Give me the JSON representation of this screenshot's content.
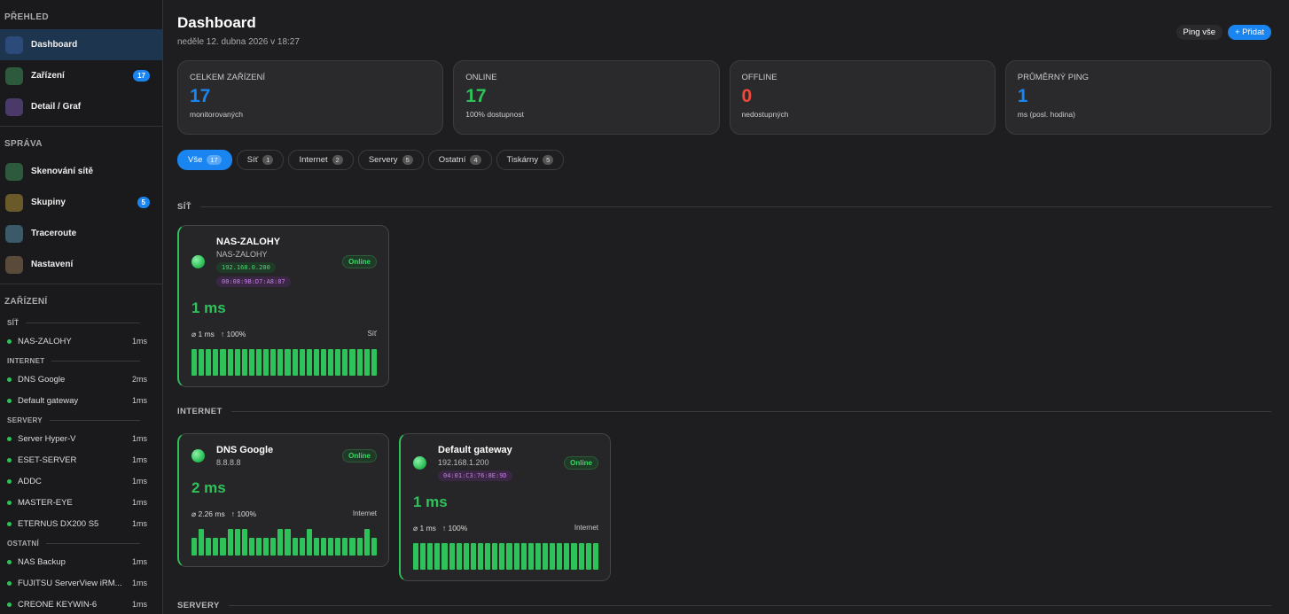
{
  "sidebar": {
    "sections": [
      {
        "title": "PŘEHLED",
        "items": [
          {
            "label": "Dashboard"
          },
          {
            "label": "Zařízení",
            "badge": 17
          },
          {
            "label": "Detail / Graf"
          }
        ]
      },
      {
        "title": "SPRÁVA",
        "items": [
          {
            "label": "Skenování sítě"
          },
          {
            "label": "Skupiny",
            "badge": 5
          },
          {
            "label": "Traceroute"
          },
          {
            "label": "Nastavení"
          }
        ]
      }
    ],
    "devices_title": "ZAŘÍZENÍ",
    "device_groups": [
      {
        "title": "SÍŤ",
        "items": [
          {
            "name": "NAS-ZALOHY",
            "ping": "1ms"
          }
        ]
      },
      {
        "title": "INTERNET",
        "items": [
          {
            "name": "DNS Google",
            "ping": "2ms"
          },
          {
            "name": "Default gateway",
            "ping": "1ms"
          }
        ]
      },
      {
        "title": "SERVERY",
        "items": [
          {
            "name": "Server Hyper-V",
            "ping": "1ms"
          },
          {
            "name": "ESET-SERVER",
            "ping": "1ms"
          },
          {
            "name": "ADDC",
            "ping": "1ms"
          },
          {
            "name": "MASTER-EYE",
            "ping": "1ms"
          },
          {
            "name": "ETERNUS DX200 S5",
            "ping": "1ms"
          }
        ]
      },
      {
        "title": "OSTATNÍ",
        "items": [
          {
            "name": "NAS Backup",
            "ping": "1ms"
          },
          {
            "name": "FUJITSU ServerView iRM...",
            "ping": "1ms"
          },
          {
            "name": "CREONE KEYWIN-6",
            "ping": "1ms"
          }
        ]
      }
    ]
  },
  "header": {
    "title": "Dashboard",
    "date": "neděle 12. dubna 2026 v 18:27",
    "buttons": [
      "Ping vše",
      "+ Přidat"
    ]
  },
  "stats": [
    {
      "label": "CELKEM ZAŘÍZENÍ",
      "value": 17,
      "note": "monitorovaných"
    },
    {
      "label": "ONLINE",
      "value": 17,
      "note": "100% dostupnost"
    },
    {
      "label": "OFFLINE",
      "value": 0,
      "note": "nedostupných"
    },
    {
      "label": "PRŮMĚRNÝ PING",
      "value": 1,
      "note": "ms (posl. hodina)"
    }
  ],
  "filters": [
    {
      "label": "Vše",
      "count": 17
    },
    {
      "label": "Síť",
      "count": 1
    },
    {
      "label": "Internet",
      "count": 2
    },
    {
      "label": "Servery",
      "count": 5
    },
    {
      "label": "Ostatní",
      "count": 4
    },
    {
      "label": "Tiskárny",
      "count": 5
    }
  ],
  "sections": [
    {
      "title": "SÍŤ",
      "devices": [
        {
          "name": "NAS-ZALOHY",
          "host": "NAS-ZALOHY",
          "ip": "192.168.0.200",
          "mac": "00:08:9B:D7:A8:87",
          "status": "Online",
          "ping": "1 ms",
          "avg": "⌀ 1 ms",
          "uptime": "↑ 100%",
          "group": "Síť",
          "history": [
            1,
            1,
            1,
            1,
            1,
            1,
            1,
            1,
            1,
            1,
            1,
            1,
            1,
            1,
            1,
            1,
            1,
            1,
            1,
            1,
            1,
            1,
            1,
            1,
            1,
            1
          ]
        }
      ]
    },
    {
      "title": "INTERNET",
      "devices": [
        {
          "name": "DNS Google",
          "host": "8.8.8.8",
          "status": "Online",
          "ping": "2 ms",
          "avg": "⌀ 2.26 ms",
          "uptime": "↑ 100%",
          "group": "Internet",
          "history": [
            2,
            3,
            2,
            2,
            2,
            3,
            3,
            3,
            2,
            2,
            2,
            2,
            3,
            3,
            2,
            2,
            3,
            2,
            2,
            2,
            2,
            2,
            2,
            2,
            3,
            2
          ]
        },
        {
          "name": "Default gateway",
          "host": "192.168.1.200",
          "mac": "04:01:C3:76:8E:9D",
          "status": "Online",
          "ping": "1 ms",
          "avg": "⌀ 1 ms",
          "uptime": "↑ 100%",
          "group": "Internet",
          "history": [
            1,
            1,
            1,
            1,
            1,
            1,
            1,
            1,
            1,
            1,
            1,
            1,
            1,
            1,
            1,
            1,
            1,
            1,
            1,
            1,
            1,
            1,
            1,
            1,
            1,
            1
          ]
        }
      ]
    },
    {
      "title": "SERVERY",
      "devices": []
    }
  ]
}
